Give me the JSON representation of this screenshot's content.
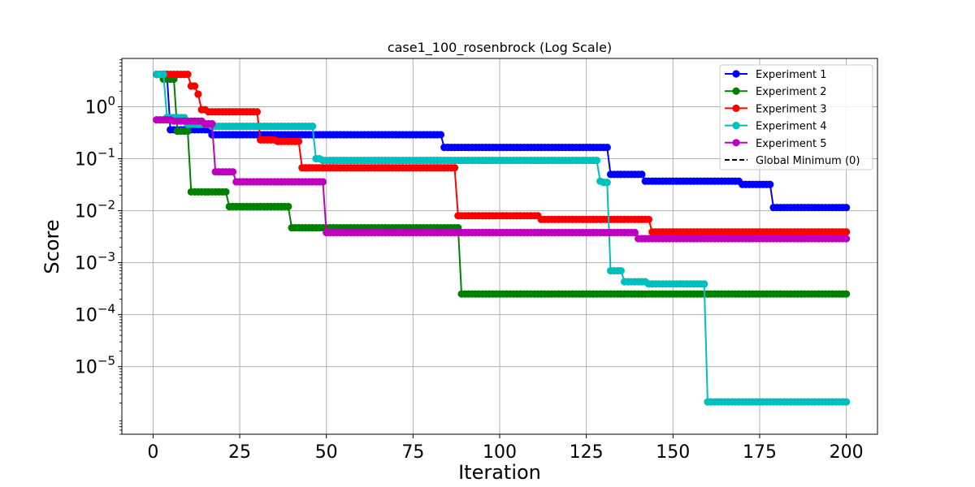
{
  "chart_data": {
    "type": "line",
    "title": "case1_100_rosenbrock (Log Scale)",
    "xlabel": "Iteration",
    "ylabel": "Score",
    "yscale": "log",
    "xlim": [
      -9,
      209
    ],
    "ylim": [
      5e-07,
      8.5
    ],
    "x_ticks": [
      0,
      25,
      50,
      75,
      100,
      125,
      150,
      175,
      200
    ],
    "y_ticks": [
      {
        "value": 1e-05,
        "mantissa": "10",
        "exp": "−5"
      },
      {
        "value": 0.0001,
        "mantissa": "10",
        "exp": "−4"
      },
      {
        "value": 0.001,
        "mantissa": "10",
        "exp": "−3"
      },
      {
        "value": 0.01,
        "mantissa": "10",
        "exp": "−2"
      },
      {
        "value": 0.1,
        "mantissa": "10",
        "exp": "−1"
      },
      {
        "value": 1,
        "mantissa": "10",
        "exp": "0"
      }
    ],
    "grid": true,
    "legend_position": "top-right",
    "n_iterations": 200,
    "series": [
      {
        "name": "Experiment 1",
        "color": "#0000ff",
        "steps": [
          [
            1,
            4.2
          ],
          [
            5,
            0.36
          ],
          [
            17,
            0.29
          ],
          [
            84,
            0.165
          ],
          [
            132,
            0.05
          ],
          [
            142,
            0.037
          ],
          [
            170,
            0.032
          ],
          [
            179,
            0.0115
          ]
        ]
      },
      {
        "name": "Experiment 2",
        "color": "#008000",
        "steps": [
          [
            1,
            4.2
          ],
          [
            3,
            3.4
          ],
          [
            7,
            0.34
          ],
          [
            11,
            0.023
          ],
          [
            22,
            0.012
          ],
          [
            40,
            0.0047
          ],
          [
            89,
            0.00025
          ]
        ]
      },
      {
        "name": "Experiment 3",
        "color": "#ff0000",
        "steps": [
          [
            1,
            4.2
          ],
          [
            11,
            2.5
          ],
          [
            13,
            1.75
          ],
          [
            14,
            0.88
          ],
          [
            16,
            0.8
          ],
          [
            31,
            0.23
          ],
          [
            36,
            0.215
          ],
          [
            43,
            0.067
          ],
          [
            88,
            0.008
          ],
          [
            112,
            0.0068
          ],
          [
            144,
            0.0039
          ]
        ]
      },
      {
        "name": "Experiment 4",
        "color": "#00bfbf",
        "steps": [
          [
            1,
            4.2
          ],
          [
            4,
            0.62
          ],
          [
            10,
            0.46
          ],
          [
            17,
            0.42
          ],
          [
            47,
            0.1
          ],
          [
            49,
            0.093
          ],
          [
            129,
            0.037
          ],
          [
            130,
            0.035
          ],
          [
            132,
            0.0007
          ],
          [
            136,
            0.00043
          ],
          [
            143,
            0.00039
          ],
          [
            160,
            2.1e-06
          ]
        ]
      },
      {
        "name": "Experiment 5",
        "color": "#bf00bf",
        "steps": [
          [
            1,
            0.56
          ],
          [
            6,
            0.53
          ],
          [
            15,
            0.47
          ],
          [
            18,
            0.056
          ],
          [
            24,
            0.036
          ],
          [
            50,
            0.0038
          ],
          [
            140,
            0.0029
          ]
        ]
      }
    ],
    "reference_line": {
      "name": "Global Minimum (0)",
      "color": "#000000",
      "style": "dashed"
    }
  }
}
